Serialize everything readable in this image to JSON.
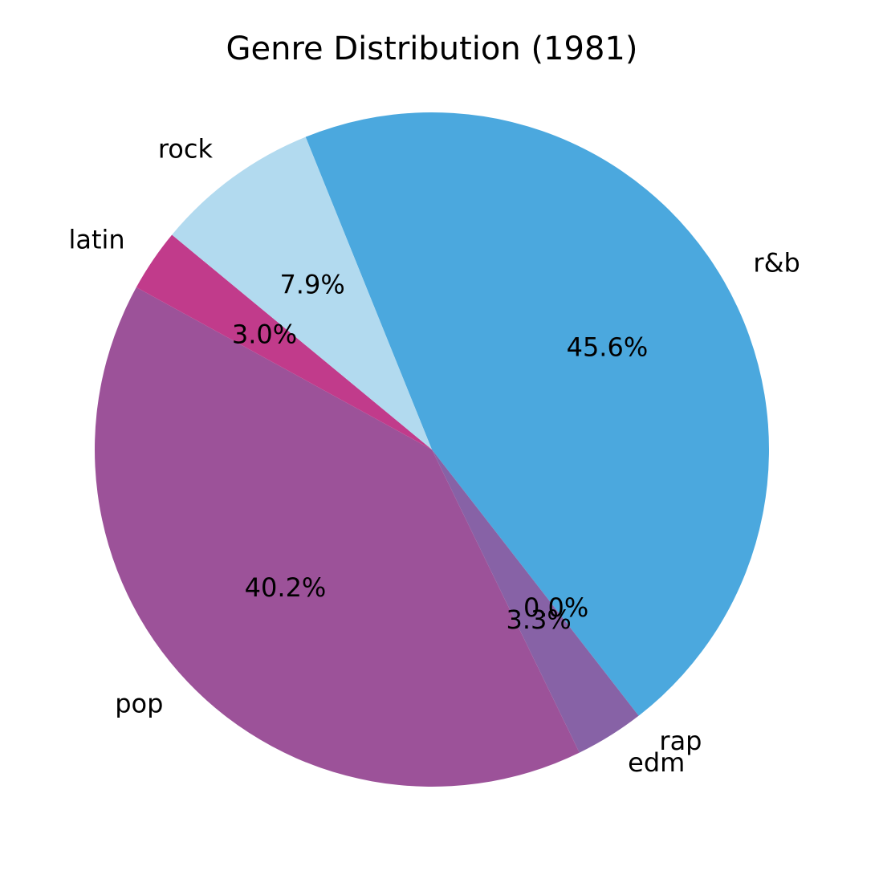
{
  "chart_data": {
    "type": "pie",
    "title": "Genre Distribution (1981)",
    "slices": [
      {
        "label": "r&b",
        "value": 45.6,
        "pct_label": "45.6%",
        "color": "#4BA8DE"
      },
      {
        "label": "rap",
        "value": 0.0,
        "pct_label": "0.0%",
        "color": "#6A7DB8"
      },
      {
        "label": "edm",
        "value": 3.3,
        "pct_label": "3.3%",
        "color": "#8762A6"
      },
      {
        "label": "pop",
        "value": 40.2,
        "pct_label": "40.2%",
        "color": "#9C5299"
      },
      {
        "label": "latin",
        "value": 3.0,
        "pct_label": "3.0%",
        "color": "#C13B8B"
      },
      {
        "label": "rock",
        "value": 7.9,
        "pct_label": "7.9%",
        "color": "#B2DAEF"
      }
    ],
    "start_angle_deg": 112,
    "direction": "clockwise"
  }
}
